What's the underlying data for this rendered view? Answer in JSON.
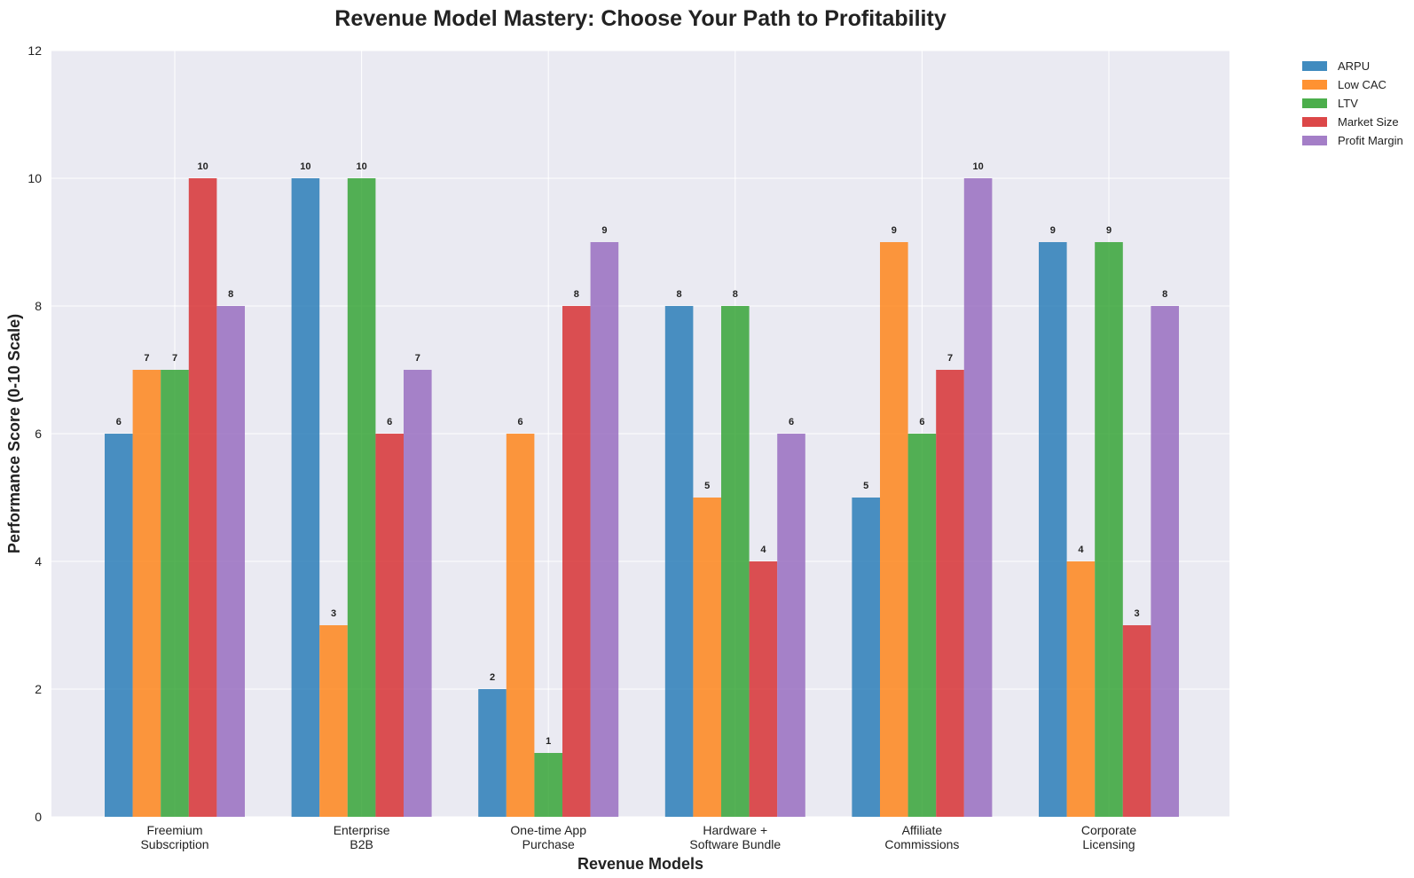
{
  "chart_data": {
    "type": "bar",
    "title": "Revenue Model Mastery: Choose Your Path to Profitability",
    "xlabel": "Revenue Models",
    "ylabel": "Performance Score (0-10 Scale)",
    "ylim": [
      0,
      12
    ],
    "yticks": [
      0,
      2,
      4,
      6,
      8,
      10,
      12
    ],
    "grid": true,
    "legend_position": "outside-top-right",
    "categories": [
      [
        "Freemium",
        "Subscription"
      ],
      [
        "Enterprise",
        "B2B"
      ],
      [
        "One-time App",
        "Purchase"
      ],
      [
        "Hardware +",
        "Software Bundle"
      ],
      [
        "Affiliate",
        "Commissions"
      ],
      [
        "Corporate",
        "Licensing"
      ]
    ],
    "series": [
      {
        "name": "ARPU",
        "color": "#1f77b4",
        "values": [
          6,
          10,
          2,
          8,
          5,
          9
        ]
      },
      {
        "name": "Low CAC",
        "color": "#ff7f0e",
        "values": [
          7,
          3,
          6,
          5,
          9,
          4
        ]
      },
      {
        "name": "LTV",
        "color": "#2ca02c",
        "values": [
          7,
          10,
          1,
          8,
          6,
          9
        ]
      },
      {
        "name": "Market Size",
        "color": "#d62728",
        "values": [
          10,
          6,
          8,
          4,
          7,
          3
        ]
      },
      {
        "name": "Profit Margin",
        "color": "#9467bd",
        "values": [
          8,
          7,
          9,
          6,
          10,
          8
        ]
      }
    ]
  }
}
